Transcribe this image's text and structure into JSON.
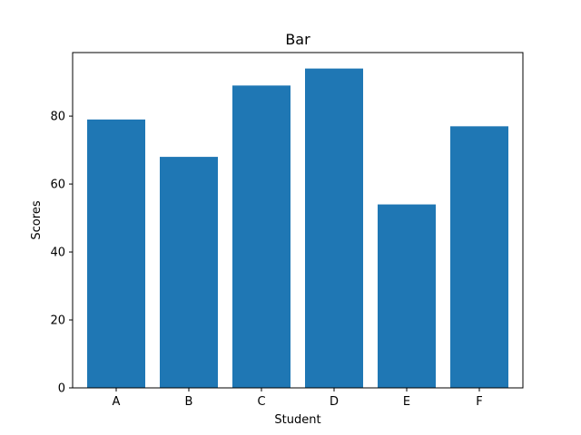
{
  "chart_data": {
    "type": "bar",
    "title": "Bar",
    "xlabel": "Student",
    "ylabel": "Scores",
    "categories": [
      "A",
      "B",
      "C",
      "D",
      "E",
      "F"
    ],
    "values": [
      79,
      68,
      89,
      94,
      54,
      77
    ],
    "ylim": [
      0,
      98.7
    ],
    "yticks": [
      "0",
      "20",
      "40",
      "60",
      "80"
    ],
    "grid": false,
    "bar_color": "#1f77b4"
  }
}
